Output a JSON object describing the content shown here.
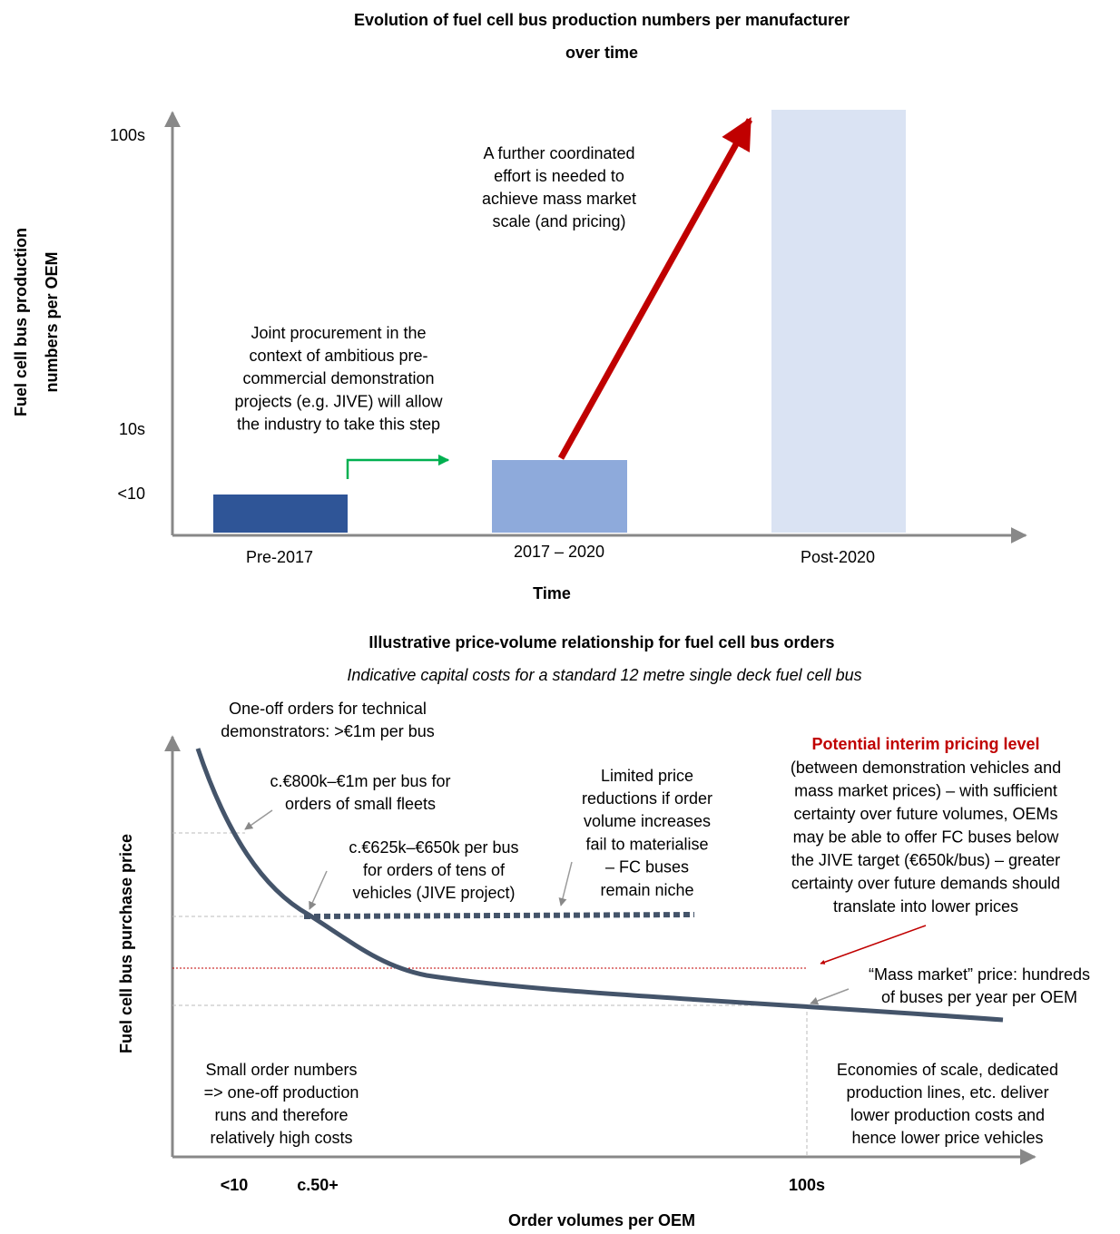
{
  "top": {
    "title": [
      "Evolution of fuel cell bus production numbers per manufacturer",
      "over time"
    ],
    "y_axis_label": [
      "Fuel cell bus production",
      "numbers per OEM"
    ],
    "y_levels": [
      "100s",
      "10s",
      "<10"
    ],
    "categories": [
      "Pre-2017",
      "2017 – 2020",
      "Post-2020"
    ],
    "x_axis_label": "Time",
    "annotations": [
      [
        "Joint procurement in the",
        "context of ambitious pre-",
        "commercial demonstration",
        "projects (e.g. JIVE) will allow",
        "the industry to take this step"
      ],
      [
        "A further coordinated",
        "effort is needed to",
        "achieve mass market",
        "scale (and pricing)"
      ]
    ]
  },
  "bottom": {
    "title": "Illustrative price-volume relationship for fuel cell bus orders",
    "subtitle": "Indicative capital costs for a standard 12 metre single deck fuel cell bus",
    "y_axis_label": "Fuel cell bus purchase price",
    "x_levels": [
      "<10",
      "c.50+",
      "100s"
    ],
    "x_axis_label": "Order volumes per OEM",
    "annotations": [
      [
        "One-off orders for technical",
        "demonstrators: >€1m per bus"
      ],
      [
        "c.€800k–€1m per bus for",
        "orders of small fleets"
      ],
      [
        "c.€625k–€650k per bus",
        "for orders of tens of",
        "vehicles (JIVE project)"
      ],
      [
        "Limited price",
        "reductions if order",
        "volume increases",
        "fail to materialise",
        "– FC buses",
        "remain niche"
      ],
      [
        "“Mass market” price: hundreds",
        "of buses per year per OEM"
      ],
      [
        "Small order numbers",
        "=> one-off production",
        "runs and therefore",
        "relatively high costs"
      ],
      [
        "Economies of scale, dedicated",
        "production lines, etc. deliver",
        "lower production costs and",
        "hence lower price vehicles"
      ]
    ],
    "interim": {
      "heading": "Potential interim pricing level",
      "lines": [
        "(between demonstration vehicles and",
        "mass market prices) – with sufficient",
        "certainty over future volumes, OEMs",
        "may be able to offer FC buses below",
        "the JIVE target (€650k/bus) – greater",
        "certainty over future demands should",
        "translate into lower prices"
      ]
    }
  }
}
